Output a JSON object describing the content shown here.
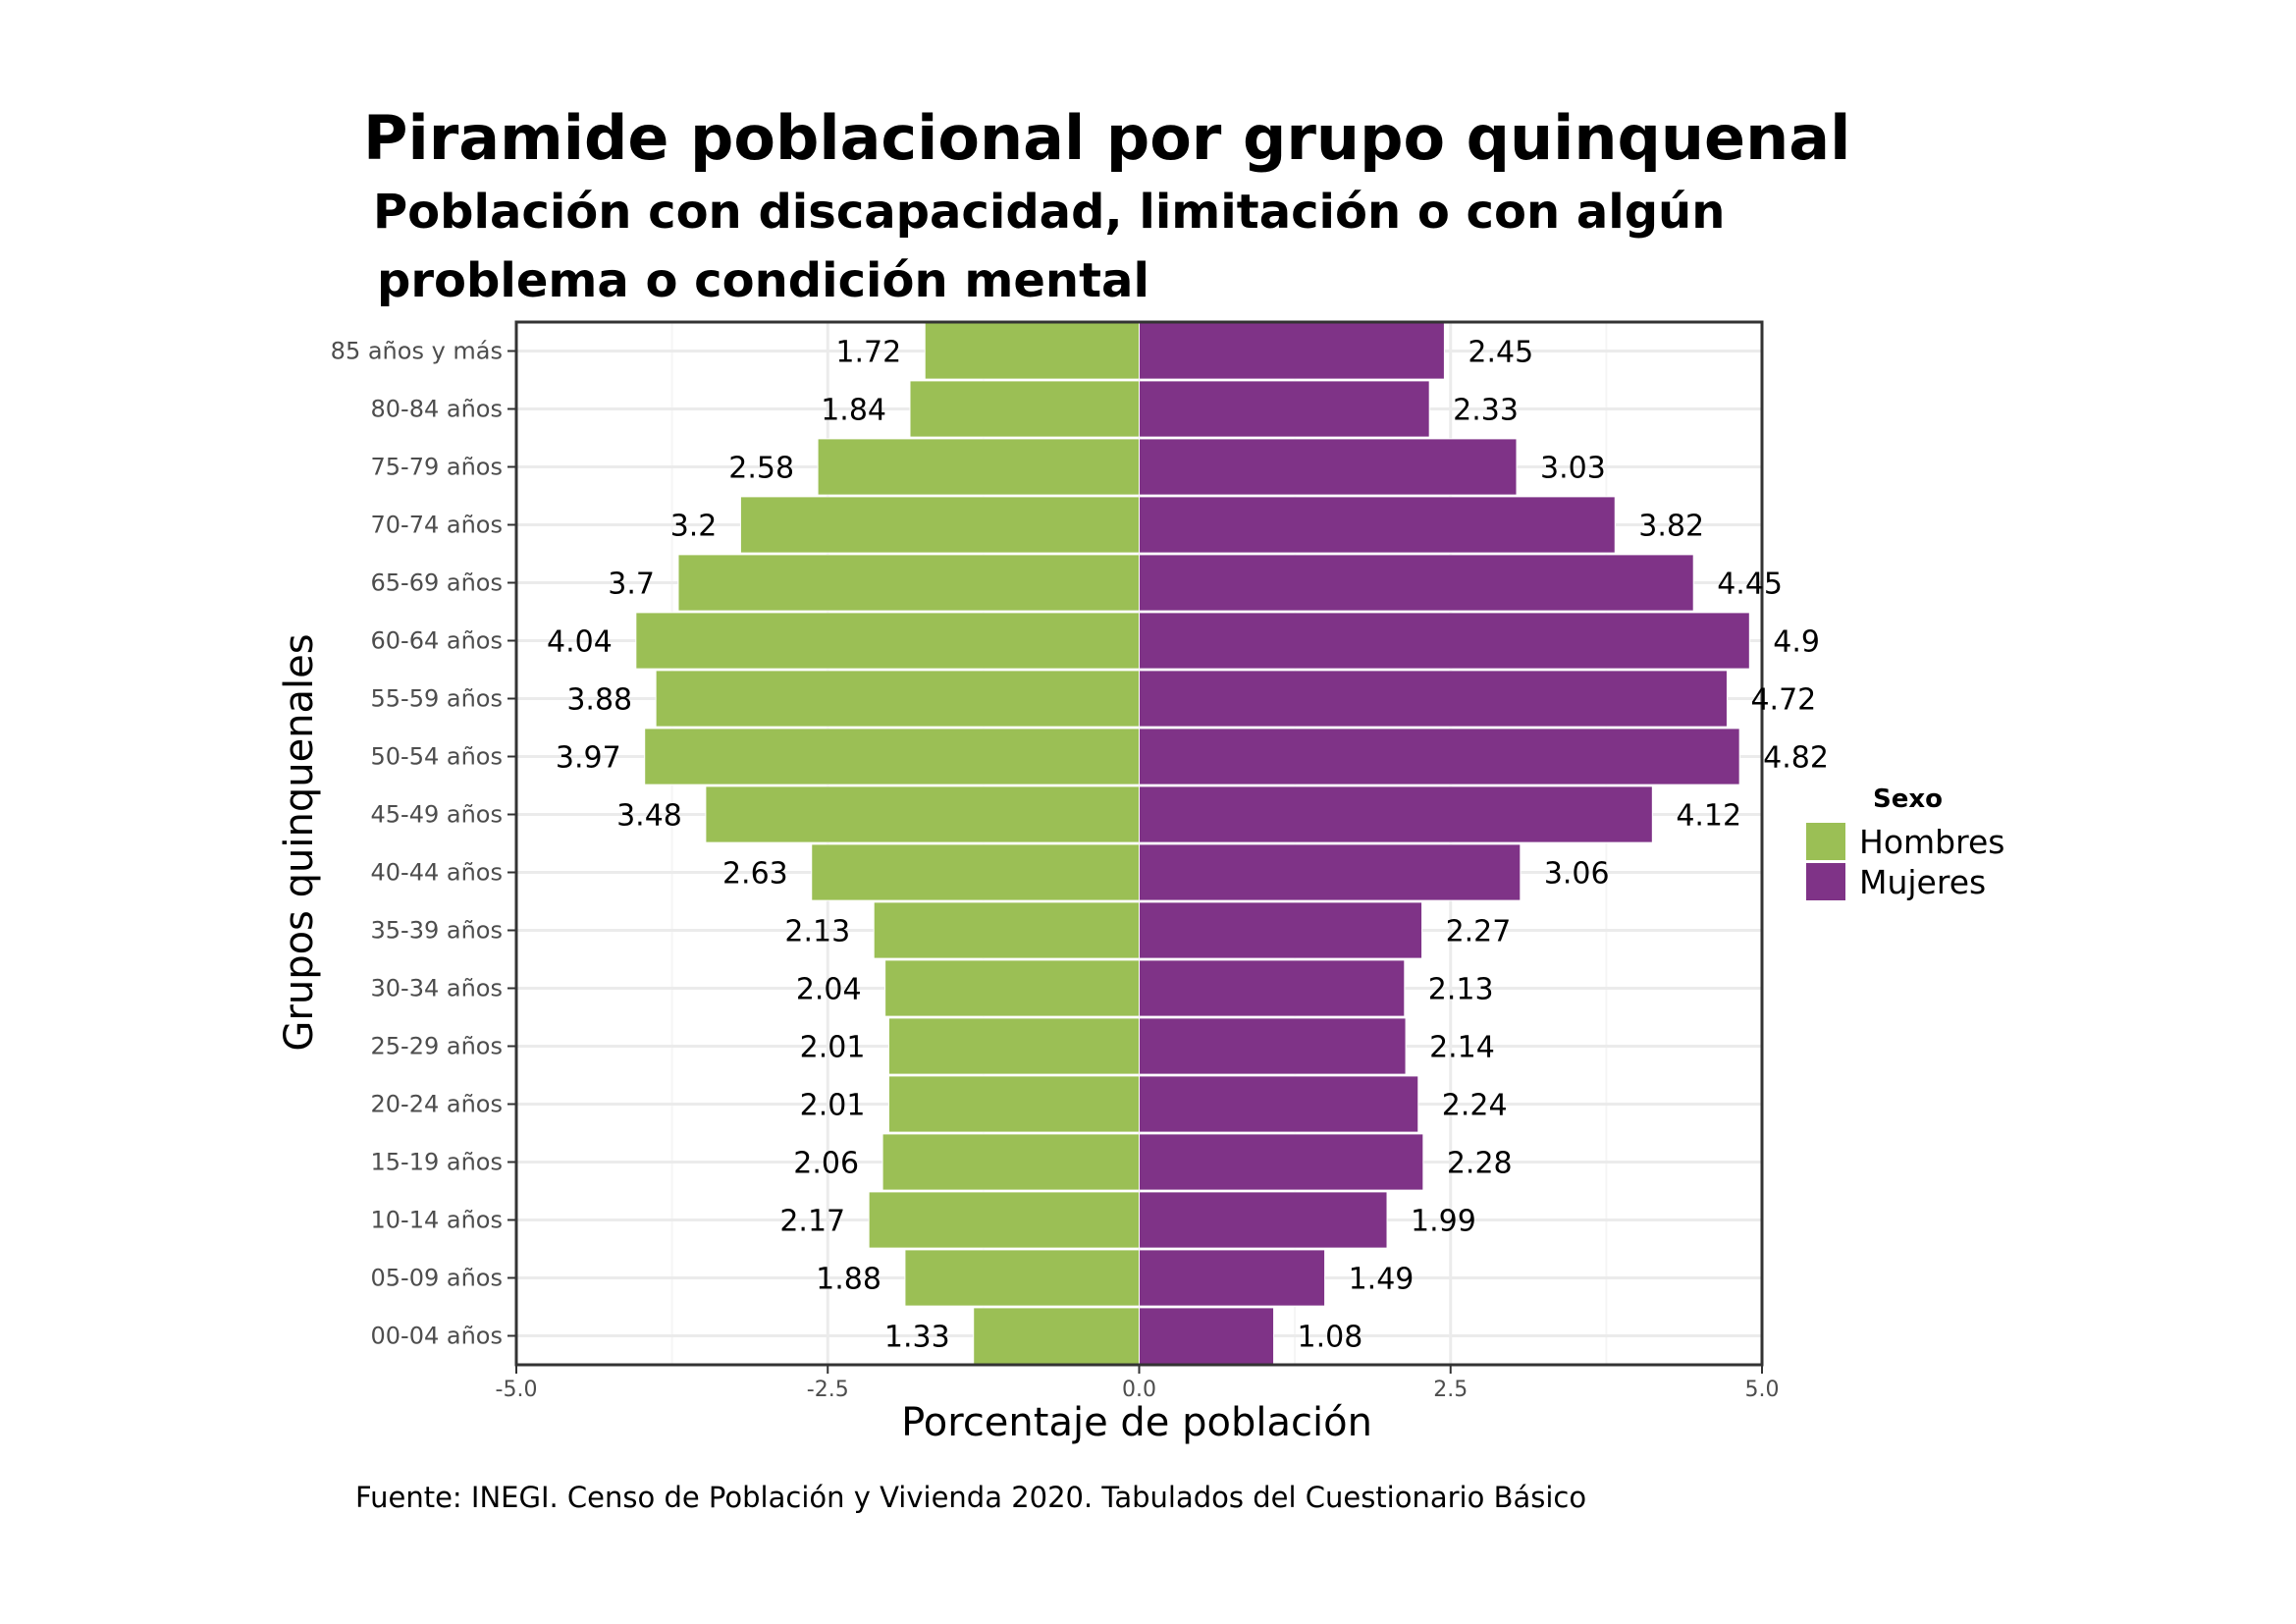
{
  "chart_data": {
    "type": "bar",
    "orientation": "horizontal-pyramid",
    "title": "Piramide poblacional por grupo quinquenal",
    "subtitle_lines": [
      "Población con discapacidad, limitación o con algún",
      "problema o condición mental"
    ],
    "xlabel": "Porcentaje de población",
    "ylabel": "Grupos quinquenales",
    "xlim": [
      -5.0,
      5.0
    ],
    "x_ticks": [
      "-5.0",
      "-2.5",
      "0.0",
      "2.5",
      "5.0"
    ],
    "x_tick_values": [
      -5.0,
      -2.5,
      0.0,
      2.5,
      5.0
    ],
    "categories": [
      "85 años y más",
      "80-84 años",
      "75-79 años",
      "70-74 años",
      "65-69 años",
      "60-64 años",
      "55-59 años",
      "50-54 años",
      "45-49 años",
      "40-44 años",
      "35-39 años",
      "30-34 años",
      "25-29 años",
      "20-24 años",
      "15-19 años",
      "10-14 años",
      "05-09 años",
      "00-04 años"
    ],
    "series": [
      {
        "name": "Hombres",
        "color": "#9bbf55",
        "values": [
          -1.72,
          -1.84,
          -2.58,
          -3.2,
          -3.7,
          -4.04,
          -3.88,
          -3.97,
          -3.48,
          -2.63,
          -2.13,
          -2.04,
          -2.01,
          -2.01,
          -2.06,
          -2.17,
          -1.88,
          -1.33
        ],
        "labels": [
          "1.72",
          "1.84",
          "2.58",
          "3.2",
          "3.7",
          "4.04",
          "3.88",
          "3.97",
          "3.48",
          "2.63",
          "2.13",
          "2.04",
          "2.01",
          "2.01",
          "2.06",
          "2.17",
          "1.88",
          "1.33"
        ]
      },
      {
        "name": "Mujeres",
        "color": "#7f3387",
        "values": [
          2.45,
          2.33,
          3.03,
          3.82,
          4.45,
          4.9,
          4.72,
          4.82,
          4.12,
          3.06,
          2.27,
          2.13,
          2.14,
          2.24,
          2.28,
          1.99,
          1.49,
          1.08
        ],
        "labels": [
          "2.45",
          "2.33",
          "3.03",
          "3.82",
          "4.45",
          "4.9",
          "4.72",
          "4.82",
          "4.12",
          "3.06",
          "2.27",
          "2.13",
          "2.14",
          "2.24",
          "2.28",
          "1.99",
          "1.49",
          "1.08"
        ]
      }
    ],
    "legend": {
      "title": "Sexo",
      "position": "right"
    },
    "grid": true
  },
  "source": "Fuente: INEGI. Censo de Población y Vivienda 2020. Tabulados del Cuestionario Básico"
}
